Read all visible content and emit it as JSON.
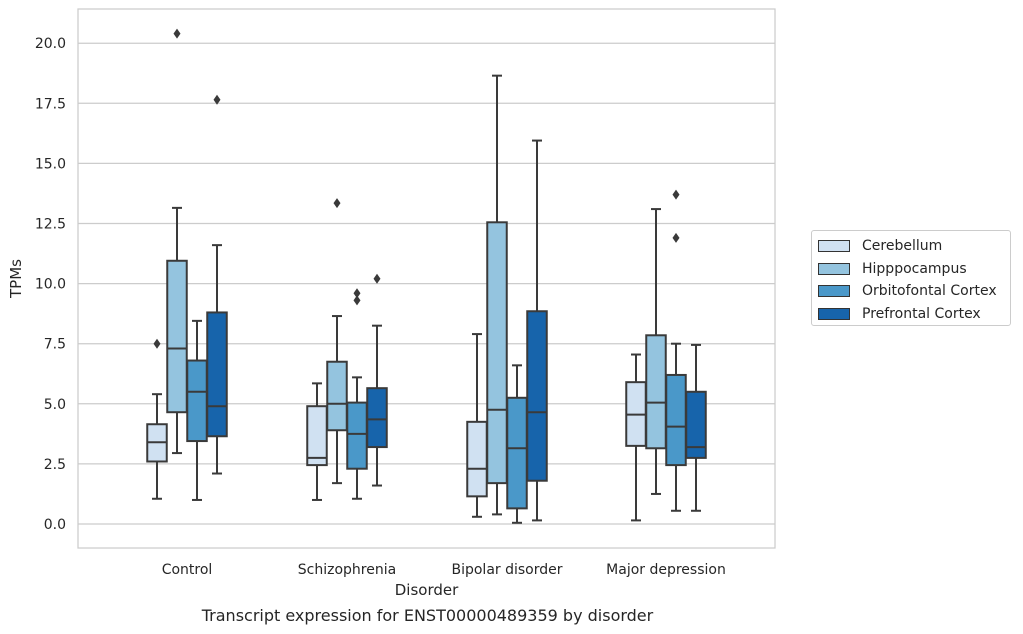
{
  "chart_data": {
    "type": "boxplot",
    "title": "Transcript expression for ENST00000489359 by disorder",
    "xlabel": "Disorder",
    "ylabel": "TPMs",
    "categories": [
      "Control",
      "Schizophrenia",
      "Bipolar disorder",
      "Major depression"
    ],
    "yticks": [
      "0.0",
      "2.5",
      "5.0",
      "7.5",
      "10.0",
      "12.5",
      "15.0",
      "17.5",
      "20.0"
    ],
    "ylim": [
      -1.0,
      21.4
    ],
    "grid": true,
    "legend_position": "right",
    "series": [
      {
        "name": "Cerebellum",
        "color": "#d0e1f2",
        "boxes": [
          {
            "whisker_low": 1.05,
            "q1": 2.6,
            "median": 3.4,
            "q3": 4.15,
            "whisker_high": 5.4,
            "outliers": [
              7.5
            ]
          },
          {
            "whisker_low": 1.0,
            "q1": 2.45,
            "median": 2.75,
            "q3": 4.9,
            "whisker_high": 5.85,
            "outliers": []
          },
          {
            "whisker_low": 0.3,
            "q1": 1.15,
            "median": 2.3,
            "q3": 4.25,
            "whisker_high": 7.9,
            "outliers": []
          },
          {
            "whisker_low": 0.15,
            "q1": 3.25,
            "median": 4.55,
            "q3": 5.9,
            "whisker_high": 7.05,
            "outliers": []
          }
        ]
      },
      {
        "name": "Hipppocampus",
        "color": "#94c4df",
        "boxes": [
          {
            "whisker_low": 2.95,
            "q1": 4.65,
            "median": 7.3,
            "q3": 10.95,
            "whisker_high": 13.15,
            "outliers": [
              20.4
            ]
          },
          {
            "whisker_low": 1.7,
            "q1": 3.9,
            "median": 5.0,
            "q3": 6.75,
            "whisker_high": 8.65,
            "outliers": [
              13.35
            ]
          },
          {
            "whisker_low": 0.4,
            "q1": 1.7,
            "median": 4.75,
            "q3": 12.55,
            "whisker_high": 18.65,
            "outliers": []
          },
          {
            "whisker_low": 1.25,
            "q1": 3.15,
            "median": 5.05,
            "q3": 7.85,
            "whisker_high": 13.1,
            "outliers": []
          }
        ]
      },
      {
        "name": "Orbitofontal Cortex",
        "color": "#4a98c9",
        "boxes": [
          {
            "whisker_low": 1.0,
            "q1": 3.45,
            "median": 5.5,
            "q3": 6.8,
            "whisker_high": 8.45,
            "outliers": []
          },
          {
            "whisker_low": 1.05,
            "q1": 2.3,
            "median": 3.75,
            "q3": 5.05,
            "whisker_high": 6.1,
            "outliers": [
              9.6,
              9.3
            ]
          },
          {
            "whisker_low": 0.05,
            "q1": 0.65,
            "median": 3.15,
            "q3": 5.25,
            "whisker_high": 6.6,
            "outliers": []
          },
          {
            "whisker_low": 0.55,
            "q1": 2.45,
            "median": 4.05,
            "q3": 6.2,
            "whisker_high": 7.5,
            "outliers": [
              11.9,
              13.7
            ]
          }
        ]
      },
      {
        "name": "Prefrontal Cortex",
        "color": "#1764ab",
        "boxes": [
          {
            "whisker_low": 2.1,
            "q1": 3.65,
            "median": 4.9,
            "q3": 8.8,
            "whisker_high": 11.6,
            "outliers": [
              17.65
            ]
          },
          {
            "whisker_low": 1.6,
            "q1": 3.2,
            "median": 4.35,
            "q3": 5.65,
            "whisker_high": 8.25,
            "outliers": [
              10.2
            ]
          },
          {
            "whisker_low": 0.15,
            "q1": 1.8,
            "median": 4.65,
            "q3": 8.85,
            "whisker_high": 15.95,
            "outliers": []
          },
          {
            "whisker_low": 0.55,
            "q1": 2.75,
            "median": 3.2,
            "q3": 5.5,
            "whisker_high": 7.45,
            "outliers": []
          }
        ]
      }
    ]
  }
}
